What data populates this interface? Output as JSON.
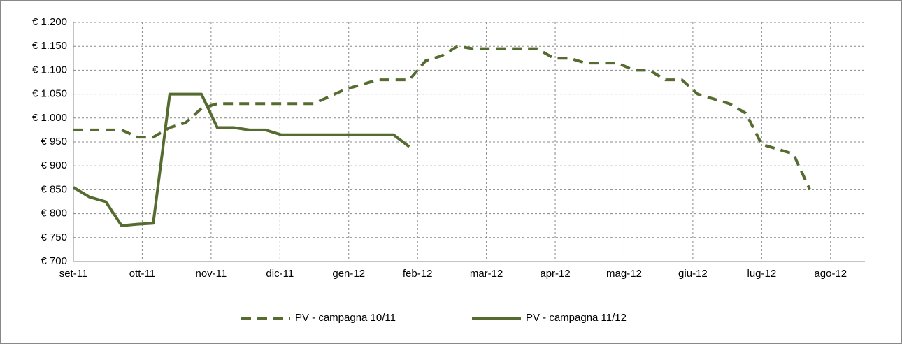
{
  "chart_data": {
    "type": "line",
    "x": [
      0,
      0.23,
      0.47,
      0.7,
      0.93,
      1.16,
      1.4,
      1.63,
      1.86,
      2.09,
      2.33,
      2.56,
      2.79,
      3.02,
      3.26,
      3.49,
      3.72,
      3.95,
      4.19,
      4.42,
      4.65,
      4.88,
      5.12,
      5.35,
      5.58,
      5.81,
      6.05,
      6.28,
      6.51,
      6.74,
      6.98,
      7.21,
      7.44,
      7.67,
      7.91,
      8.14,
      8.37,
      8.6,
      8.84,
      9.07,
      9.3,
      9.53,
      9.77,
      10.0,
      10.23,
      10.46,
      10.7
    ],
    "series": [
      {
        "name": "PV - campagna 10/11",
        "color": "#556b2f",
        "line_style": "dashed",
        "values": [
          975,
          975,
          975,
          975,
          960,
          960,
          980,
          990,
          1020,
          1030,
          1030,
          1030,
          1030,
          1030,
          1030,
          1030,
          1045,
          1060,
          1070,
          1080,
          1080,
          1080,
          1120,
          1130,
          1150,
          1145,
          1145,
          1145,
          1145,
          1145,
          1125,
          1125,
          1115,
          1115,
          1115,
          1100,
          1100,
          1080,
          1080,
          1050,
          1040,
          1030,
          1010,
          945,
          935,
          925,
          850
        ]
      },
      {
        "name": "PV - campagna 11/12",
        "color": "#556b2f",
        "line_style": "solid",
        "values": [
          855,
          835,
          825,
          775,
          778,
          780,
          1050,
          1050,
          1050,
          980,
          980,
          975,
          975,
          965,
          965,
          965,
          965,
          965,
          965,
          965,
          965,
          940,
          null,
          null,
          null,
          null,
          null,
          null,
          null,
          null,
          null,
          null,
          null,
          null,
          null,
          null,
          null,
          null,
          null,
          null,
          null,
          null,
          null,
          null,
          null,
          null,
          null
        ]
      }
    ],
    "xlim": [
      0,
      11.5
    ],
    "xticks": [
      {
        "value": 0,
        "label": "set-11"
      },
      {
        "value": 1,
        "label": "ott-11"
      },
      {
        "value": 2,
        "label": "nov-11"
      },
      {
        "value": 3,
        "label": "dic-11"
      },
      {
        "value": 4,
        "label": "gen-12"
      },
      {
        "value": 5,
        "label": "feb-12"
      },
      {
        "value": 6,
        "label": "mar-12"
      },
      {
        "value": 7,
        "label": "apr-12"
      },
      {
        "value": 8,
        "label": "mag-12"
      },
      {
        "value": 9,
        "label": "giu-12"
      },
      {
        "value": 10,
        "label": "lug-12"
      },
      {
        "value": 11,
        "label": "ago-12"
      }
    ],
    "ylim": [
      700,
      1200
    ],
    "yticks": [
      {
        "value": 700,
        "label": "€ 700"
      },
      {
        "value": 750,
        "label": "€ 750"
      },
      {
        "value": 800,
        "label": "€ 800"
      },
      {
        "value": 850,
        "label": "€ 850"
      },
      {
        "value": 900,
        "label": "€ 900"
      },
      {
        "value": 950,
        "label": "€ 950"
      },
      {
        "value": 1000,
        "label": "€ 1.000"
      },
      {
        "value": 1050,
        "label": "€ 1.050"
      },
      {
        "value": 1100,
        "label": "€ 1.100"
      },
      {
        "value": 1150,
        "label": "€ 1.150"
      },
      {
        "value": 1200,
        "label": "€ 1.200"
      }
    ],
    "grid": true,
    "legend": "bottom"
  }
}
